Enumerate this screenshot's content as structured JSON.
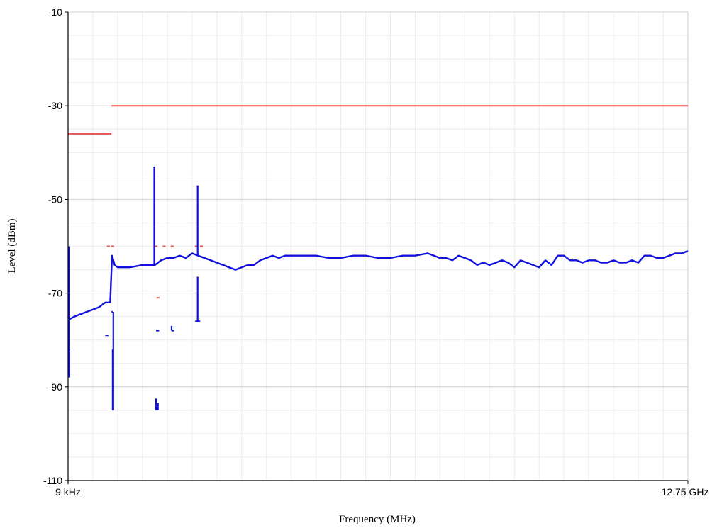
{
  "chart_data": {
    "type": "line",
    "xlabel": "Frequency (MHz)",
    "ylabel": "Level (dBm)",
    "ylim": [
      -110,
      -10
    ],
    "yticks": [
      -10,
      -30,
      -50,
      -70,
      -90,
      -110
    ],
    "x_tick_labels": [
      "9 kHz",
      "12.75 GHz"
    ],
    "grid": true,
    "colors": {
      "trace": "#1010e0",
      "limit": "#e8504a",
      "major_grid": "#cfcfcf",
      "minor_grid": "#ececec",
      "axis": "#000000"
    },
    "limit_lines": [
      {
        "x": [
          0,
          0.07
        ],
        "y": -36
      },
      {
        "x": [
          0.07,
          1.0
        ],
        "y": -30
      }
    ],
    "limit_markers": [
      {
        "x": 0.065,
        "y": -60
      },
      {
        "x": 0.072,
        "y": -60
      },
      {
        "x": 0.142,
        "y": -60
      },
      {
        "x": 0.155,
        "y": -60
      },
      {
        "x": 0.168,
        "y": -60
      },
      {
        "x": 0.207,
        "y": -60
      },
      {
        "x": 0.215,
        "y": -60
      },
      {
        "x": 0.145,
        "y": -71
      }
    ],
    "trace": {
      "x": [
        0.0,
        0.003,
        0.01,
        0.02,
        0.03,
        0.04,
        0.05,
        0.055,
        0.06,
        0.068,
        0.07,
        0.071,
        0.075,
        0.08,
        0.09,
        0.1,
        0.12,
        0.14,
        0.15,
        0.16,
        0.17,
        0.18,
        0.19,
        0.2,
        0.21,
        0.22,
        0.23,
        0.24,
        0.25,
        0.26,
        0.27,
        0.28,
        0.29,
        0.3,
        0.31,
        0.32,
        0.33,
        0.34,
        0.35,
        0.36,
        0.38,
        0.4,
        0.42,
        0.44,
        0.46,
        0.48,
        0.5,
        0.52,
        0.54,
        0.56,
        0.58,
        0.6,
        0.61,
        0.62,
        0.63,
        0.64,
        0.65,
        0.66,
        0.67,
        0.68,
        0.69,
        0.7,
        0.71,
        0.72,
        0.73,
        0.74,
        0.75,
        0.76,
        0.77,
        0.78,
        0.79,
        0.8,
        0.81,
        0.82,
        0.83,
        0.84,
        0.85,
        0.86,
        0.87,
        0.88,
        0.89,
        0.9,
        0.91,
        0.92,
        0.93,
        0.94,
        0.95,
        0.96,
        0.97,
        0.98,
        0.99,
        1.0
      ],
      "y": [
        -75,
        -75.5,
        -75,
        -74.5,
        -74,
        -73.5,
        -73,
        -72.5,
        -72,
        -72,
        -65,
        -62,
        -64,
        -64.5,
        -64.5,
        -64.5,
        -64,
        -64,
        -63,
        -62.5,
        -62.5,
        -62,
        -62.5,
        -61.5,
        -62,
        -62.5,
        -63,
        -63.5,
        -64,
        -64.5,
        -65,
        -64.5,
        -64,
        -64,
        -63,
        -62.5,
        -62,
        -62.5,
        -62,
        -62,
        -62,
        -62,
        -62.5,
        -62.5,
        -62,
        -62,
        -62.5,
        -62.5,
        -62,
        -62,
        -61.5,
        -62.5,
        -62.5,
        -63,
        -62,
        -62.5,
        -63,
        -64,
        -63.5,
        -64,
        -63.5,
        -63,
        -63.5,
        -64.5,
        -63,
        -63.5,
        -64,
        -64.5,
        -63,
        -64,
        -62,
        -62,
        -63,
        -63,
        -63.5,
        -63,
        -63,
        -63.5,
        -63.5,
        -63,
        -63.5,
        -63.5,
        -63,
        -63.5,
        -62,
        -62,
        -62.5,
        -62.5,
        -62,
        -61.5,
        -61.5,
        -61
      ]
    },
    "trace_segments": [
      {
        "x": [
          0.001,
          0.001,
          0.002,
          0.002
        ],
        "y": [
          -60,
          -83,
          -88,
          -82
        ]
      },
      {
        "x": [
          0.07,
          0.072
        ],
        "y": [
          -74,
          -74
        ]
      },
      {
        "x": [
          0.072,
          0.072
        ],
        "y": [
          -82,
          -95
        ]
      },
      {
        "x": [
          0.073,
          0.073
        ],
        "y": [
          -74,
          -95
        ]
      },
      {
        "x": [
          0.06,
          0.065
        ],
        "y": [
          -79,
          -79
        ]
      },
      {
        "x": [
          0.139,
          0.139
        ],
        "y": [
          -43,
          -64
        ]
      },
      {
        "x": [
          0.142,
          0.147
        ],
        "y": [
          -78,
          -78
        ]
      },
      {
        "x": [
          0.142,
          0.142
        ],
        "y": [
          -92.5,
          -95
        ]
      },
      {
        "x": [
          0.145,
          0.145
        ],
        "y": [
          -93.5,
          -95
        ]
      },
      {
        "x": [
          0.167,
          0.167
        ],
        "y": [
          -77,
          -78
        ]
      },
      {
        "x": [
          0.167,
          0.171
        ],
        "y": [
          -78,
          -78
        ]
      },
      {
        "x": [
          0.209,
          0.209
        ],
        "y": [
          -47,
          -62
        ]
      },
      {
        "x": [
          0.209,
          0.209
        ],
        "y": [
          -66.5,
          -76
        ]
      },
      {
        "x": [
          0.205,
          0.213
        ],
        "y": [
          -76,
          -76
        ]
      }
    ]
  }
}
